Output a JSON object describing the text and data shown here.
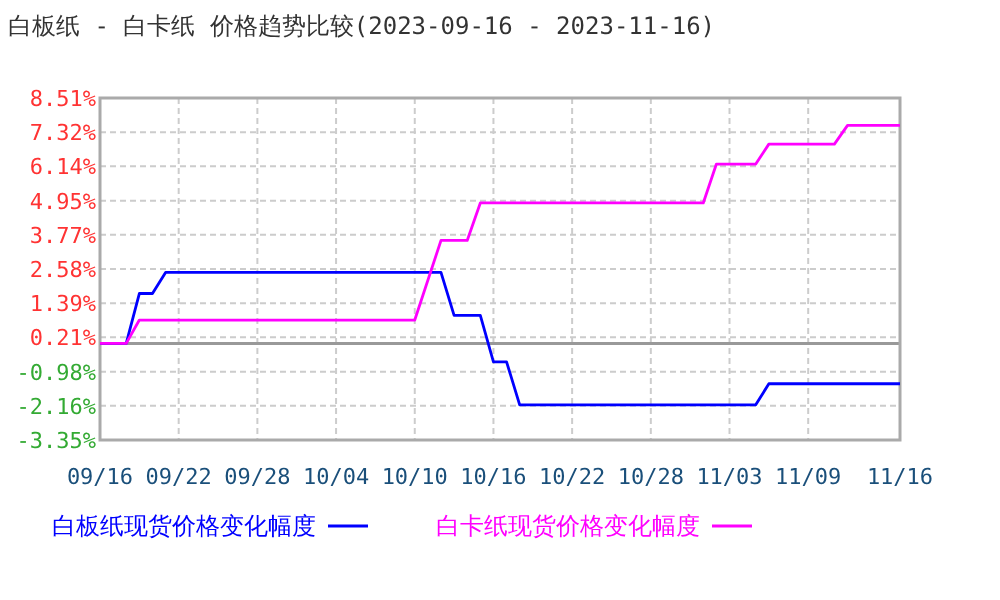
{
  "chart_data": {
    "type": "line",
    "title": "白板纸 - 白卡纸 价格趋势比较(2023-09-16 - 2023-11-16)",
    "xlim": [
      "2023-09-16",
      "2023-11-16"
    ],
    "xticks": [
      {
        "value": "2023-09-16",
        "label": "09/16"
      },
      {
        "value": "2023-09-22",
        "label": "09/22"
      },
      {
        "value": "2023-09-28",
        "label": "09/28"
      },
      {
        "value": "2023-10-04",
        "label": "10/04"
      },
      {
        "value": "2023-10-10",
        "label": "10/10"
      },
      {
        "value": "2023-10-16",
        "label": "10/16"
      },
      {
        "value": "2023-10-22",
        "label": "10/22"
      },
      {
        "value": "2023-10-28",
        "label": "10/28"
      },
      {
        "value": "2023-11-03",
        "label": "11/03"
      },
      {
        "value": "2023-11-09",
        "label": "11/09"
      },
      {
        "value": "2023-11-16",
        "label": "11/16"
      }
    ],
    "ylim": [
      -3.35,
      8.51
    ],
    "yticks": [
      {
        "value": -3.35,
        "label": "-3.35%"
      },
      {
        "value": -2.16,
        "label": "-2.16%"
      },
      {
        "value": -0.98,
        "label": "-0.98%"
      },
      {
        "value": 0.21,
        "label": "0.21%"
      },
      {
        "value": 1.39,
        "label": "1.39%"
      },
      {
        "value": 2.58,
        "label": "2.58%"
      },
      {
        "value": 3.77,
        "label": "3.77%"
      },
      {
        "value": 4.95,
        "label": "4.95%"
      },
      {
        "value": 6.14,
        "label": "6.14%"
      },
      {
        "value": 7.32,
        "label": "7.32%"
      },
      {
        "value": 8.51,
        "label": "8.51%"
      }
    ],
    "grid": true,
    "legend": "bottom",
    "line_style": "solid",
    "marker": "none",
    "ref_lines": [
      {
        "axis": "y",
        "value": 0,
        "color": "#999999"
      }
    ],
    "series": [
      {
        "name": "白板纸现货价格变化幅度",
        "color": "#0000ff",
        "x": [
          "2023-09-16",
          "2023-09-18",
          "2023-09-19",
          "2023-09-20",
          "2023-09-21",
          "2023-10-12",
          "2023-10-13",
          "2023-10-15",
          "2023-10-16",
          "2023-10-17",
          "2023-10-18",
          "2023-11-05",
          "2023-11-06",
          "2023-11-16"
        ],
        "values": [
          0,
          0,
          1.73,
          1.73,
          2.46,
          2.46,
          0.97,
          0.97,
          -0.64,
          -0.64,
          -2.13,
          -2.13,
          -1.4,
          -1.4
        ]
      },
      {
        "name": "白卡纸现货价格变化幅度",
        "color": "#ff00ff",
        "x": [
          "2023-09-16",
          "2023-09-18",
          "2023-09-19",
          "2023-10-10",
          "2023-10-12",
          "2023-10-14",
          "2023-10-15",
          "2023-11-01",
          "2023-11-02",
          "2023-11-05",
          "2023-11-06",
          "2023-11-11",
          "2023-11-12",
          "2023-11-16"
        ],
        "values": [
          0,
          0,
          0.81,
          0.81,
          3.57,
          3.57,
          4.87,
          4.87,
          6.22,
          6.22,
          6.91,
          6.91,
          7.56,
          7.56
        ]
      }
    ]
  }
}
